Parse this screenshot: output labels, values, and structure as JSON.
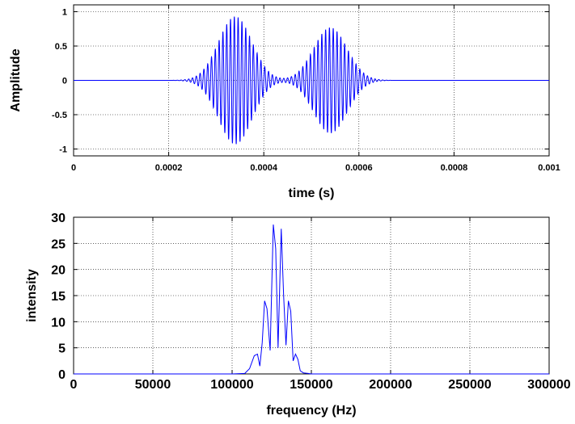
{
  "colors": {
    "trace": "#0000ff",
    "frame": "#000000",
    "background": "#ffffff"
  },
  "chart_data": [
    {
      "type": "line",
      "xlabel": "time (s)",
      "ylabel": "Amplitude",
      "xlim": [
        0,
        0.001
      ],
      "ylim": [
        -1.1,
        1.1
      ],
      "grid": true,
      "x_ticks": [
        0,
        0.0002,
        0.0004,
        0.0006,
        0.0008,
        0.001
      ],
      "x_tick_labels": [
        "0",
        "0.0002",
        "0.0004",
        "0.0006",
        "0.0008",
        "0.001"
      ],
      "y_ticks": [
        -1,
        -0.5,
        0,
        0.5,
        1
      ],
      "y_tick_labels": [
        "-1",
        "-0.5",
        "0",
        "0.5",
        "1"
      ],
      "series": [
        {
          "signal": "Gaussian-windowed sinusoid bursts",
          "carrier_frequency_hz": 125000,
          "bursts": [
            {
              "center_s": 0.00034,
              "peak_amplitude": 0.93,
              "width_s": 5e-05
            },
            {
              "center_s": 0.00054,
              "peak_amplitude": 0.77,
              "width_s": 5e-05
            }
          ]
        }
      ]
    },
    {
      "type": "line",
      "xlabel": "frequency (Hz)",
      "ylabel": "intensity",
      "xlim": [
        0,
        300000
      ],
      "ylim": [
        0,
        30
      ],
      "grid": true,
      "x_ticks": [
        0,
        50000,
        100000,
        150000,
        200000,
        250000,
        300000
      ],
      "x_tick_labels": [
        "0",
        "50000",
        "100000",
        "150000",
        "200000",
        "250000",
        "300000"
      ],
      "y_ticks": [
        0,
        5,
        10,
        15,
        20,
        25,
        30
      ],
      "y_tick_labels": [
        "0",
        "5",
        "10",
        "15",
        "20",
        "25",
        "30"
      ],
      "series": [
        {
          "x": [
            0,
            100000,
            108000,
            111000,
            114000,
            116000,
            117500,
            119000,
            120500,
            122000,
            124000,
            126000,
            127500,
            129000,
            131000,
            132500,
            134000,
            135500,
            137000,
            138500,
            140000,
            141500,
            143000,
            145000,
            148000,
            150000,
            200000,
            300000
          ],
          "y": [
            0,
            0,
            0.1,
            1.0,
            3.5,
            3.8,
            1.5,
            6.0,
            14.0,
            12.5,
            4.5,
            28.6,
            24.0,
            5.0,
            27.8,
            15.0,
            5.5,
            14.0,
            12.0,
            2.5,
            3.8,
            2.8,
            0.6,
            0.2,
            0.1,
            0,
            0,
            0
          ]
        }
      ]
    }
  ]
}
